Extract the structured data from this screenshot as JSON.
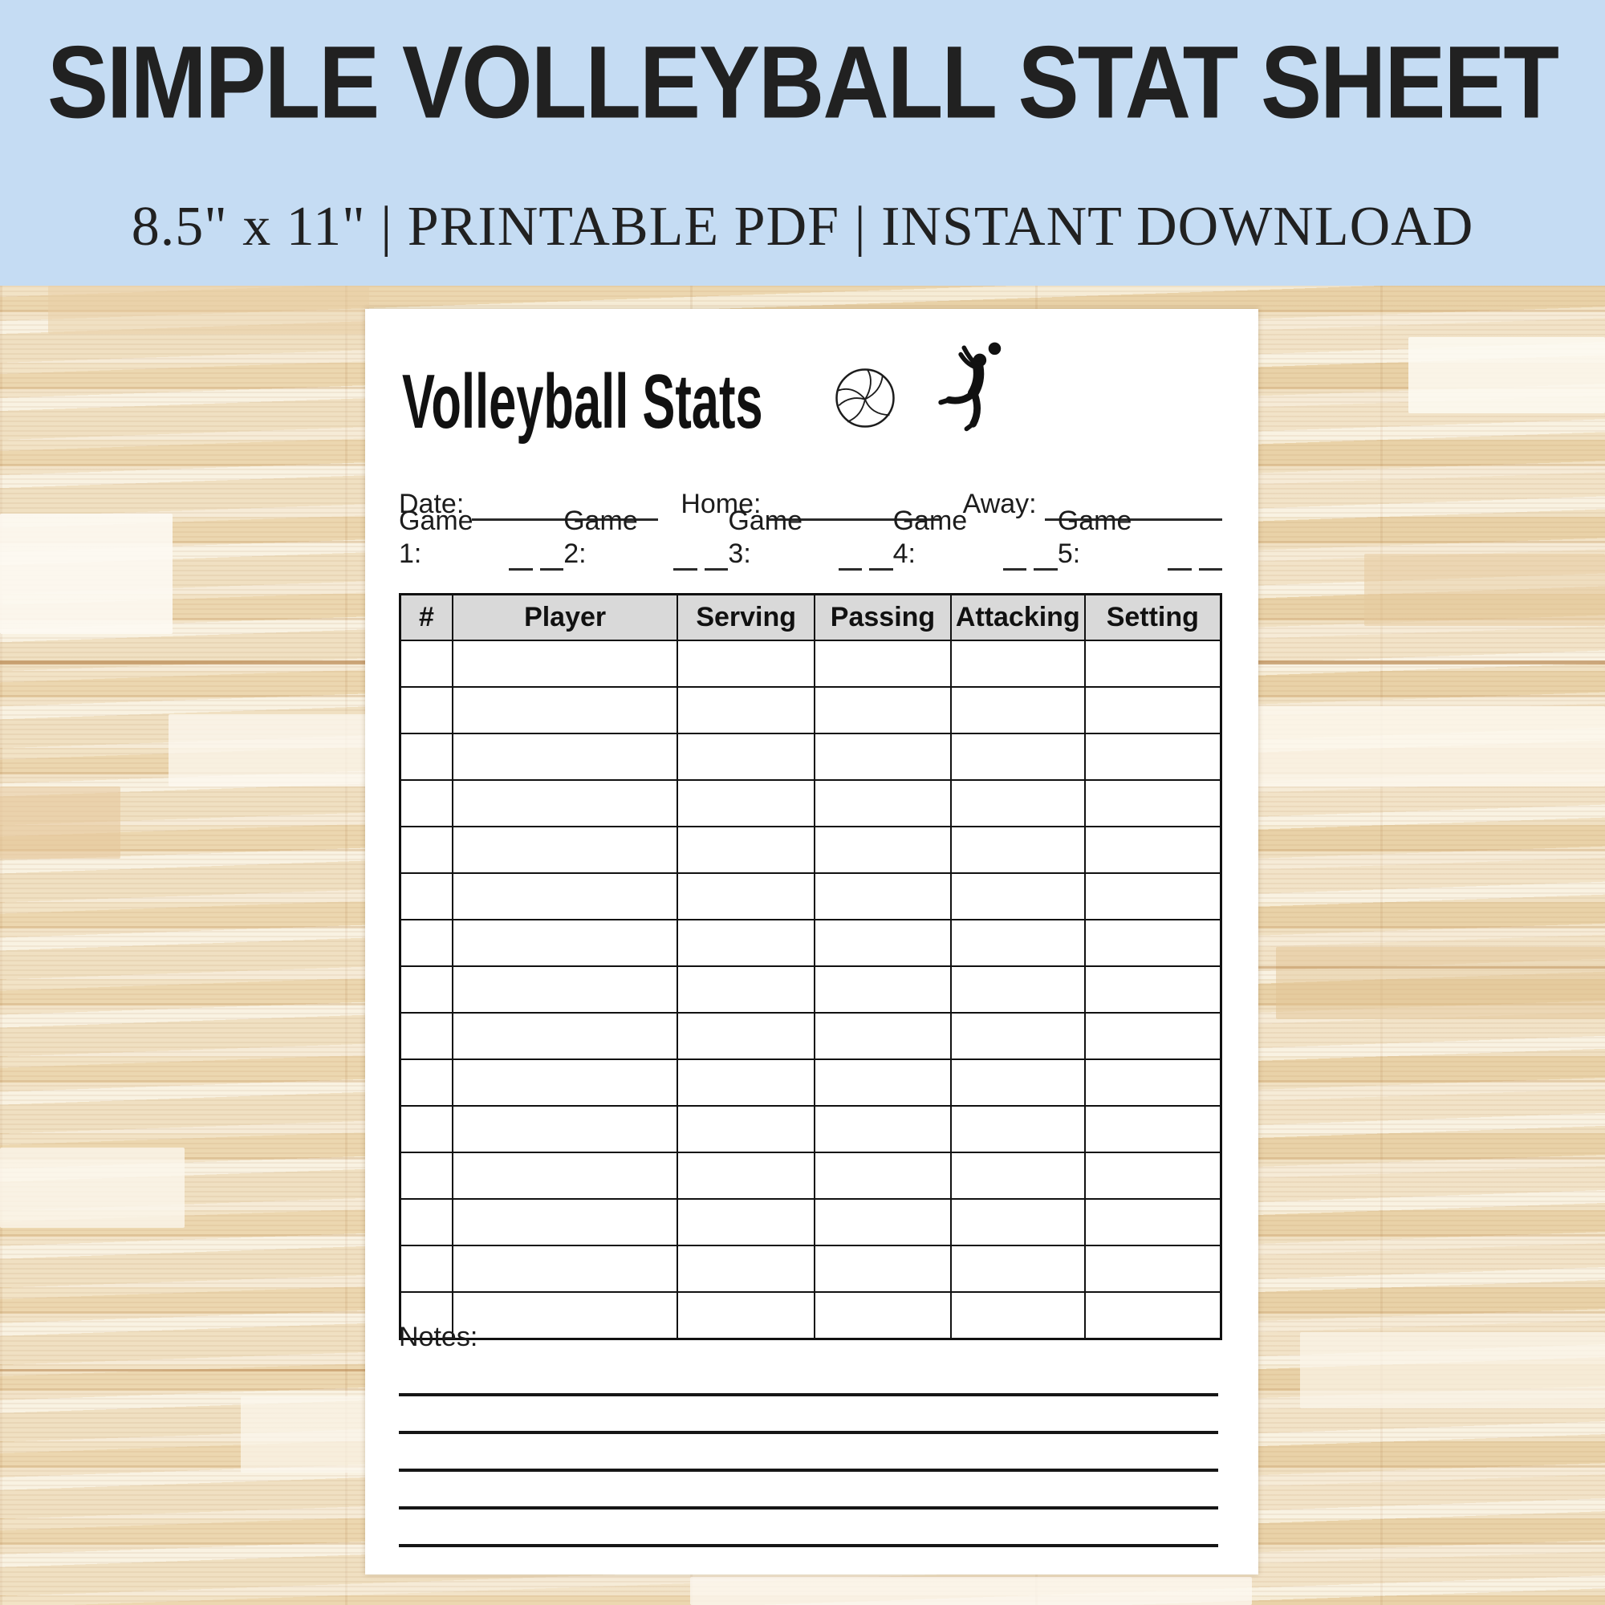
{
  "banner": {
    "title": "SIMPLE VOLLEYBALL STAT SHEET",
    "subtitle": "8.5\" x 11\" | PRINTABLE PDF | INSTANT DOWNLOAD"
  },
  "sheet": {
    "title": "Volleyball Stats",
    "icons": [
      "volleyball-icon",
      "spiking-player-icon"
    ],
    "info_fields": [
      {
        "id": "date",
        "label": "Date:",
        "value": ""
      },
      {
        "id": "home",
        "label": "Home:",
        "value": ""
      },
      {
        "id": "away",
        "label": "Away:",
        "value": ""
      }
    ],
    "games": [
      {
        "label": "Game 1:",
        "score_blanks": 2
      },
      {
        "label": "Game 2:",
        "score_blanks": 2
      },
      {
        "label": "Game 3:",
        "score_blanks": 2
      },
      {
        "label": "Game 4:",
        "score_blanks": 2
      },
      {
        "label": "Game 5:",
        "score_blanks": 2
      }
    ],
    "stats_table": {
      "columns": [
        "#",
        "Player",
        "Serving",
        "Passing",
        "Attacking",
        "Setting"
      ],
      "empty_row_count": 15
    },
    "notes_label": "Notes:",
    "notes_line_count": 5
  },
  "colors": {
    "banner_bg": "#c5dcf3",
    "heading_text": "#212121",
    "paper_bg": "#ffffff",
    "table_header_bg": "#d9d9d9",
    "table_border": "#111111",
    "wood_light": "#f6ecd6",
    "wood_mid": "#ecd7b0",
    "wood_seam": "#b5824a"
  }
}
